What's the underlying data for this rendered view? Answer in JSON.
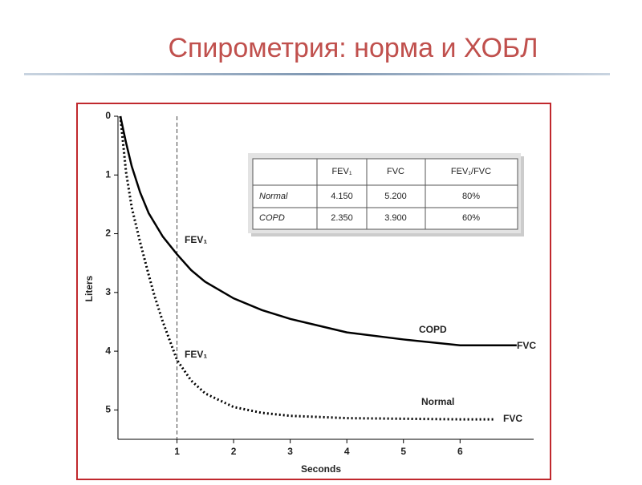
{
  "title": "Спирометрия:  норма и ХОБЛ",
  "chart_data": {
    "type": "line",
    "x_label": "Seconds",
    "y_label": "Liters",
    "xlim": [
      0,
      7.3
    ],
    "ylim": [
      0,
      5.5
    ],
    "y_inverted": true,
    "xticks": [
      1,
      2,
      3,
      4,
      5,
      6
    ],
    "yticks": [
      0,
      1,
      2,
      3,
      4,
      5
    ],
    "marker_x": 1,
    "series": [
      {
        "name": "COPD",
        "color": "#000000",
        "style": "solid",
        "x": [
          0,
          0.1,
          0.2,
          0.35,
          0.5,
          0.75,
          1,
          1.25,
          1.5,
          2,
          2.5,
          3,
          4,
          5,
          6,
          7
        ],
        "values": [
          0,
          0.45,
          0.85,
          1.3,
          1.65,
          2.05,
          2.35,
          2.62,
          2.82,
          3.1,
          3.3,
          3.45,
          3.68,
          3.8,
          3.9,
          3.9
        ]
      },
      {
        "name": "Normal",
        "color": "#000000",
        "style": "dotted",
        "x": [
          0,
          0.1,
          0.2,
          0.35,
          0.5,
          0.6,
          0.75,
          1,
          1.25,
          1.5,
          2,
          2.5,
          3,
          4,
          5,
          6,
          6.6
        ],
        "values": [
          0,
          0.95,
          1.55,
          2.15,
          2.7,
          3.05,
          3.5,
          4.15,
          4.5,
          4.72,
          4.95,
          5.05,
          5.1,
          5.14,
          5.15,
          5.16,
          5.16
        ]
      }
    ],
    "annotations": {
      "fev_copd": "FEV₁",
      "fev_normal": "FEV₁",
      "fvc_copd": "FVC",
      "fvc_normal": "FVC"
    }
  },
  "table": {
    "columns": [
      "FEV₁",
      "FVC",
      "FEV₁/FVC"
    ],
    "rows": [
      [
        "Normal",
        "4.150",
        "5.200",
        "80%"
      ],
      [
        "COPD",
        "2.350",
        "3.900",
        "60%"
      ]
    ]
  }
}
